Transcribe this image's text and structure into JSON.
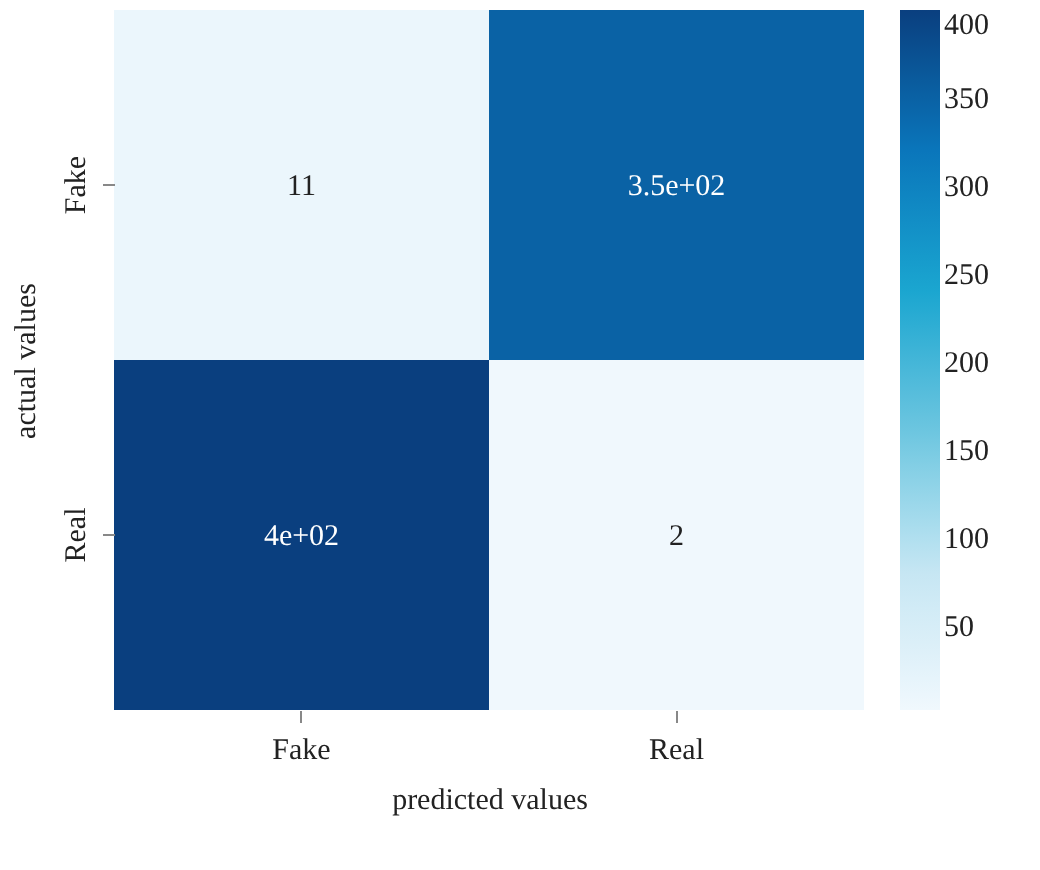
{
  "chart_data": {
    "type": "heatmap",
    "xlabel": "predicted values",
    "ylabel": "actual values",
    "categories": [
      "Fake",
      "Real"
    ],
    "y_categories": [
      "Fake",
      "Real"
    ],
    "cells": [
      [
        11,
        350
      ],
      [
        400,
        2
      ]
    ],
    "cell_labels": [
      [
        "11",
        "3.5e+02"
      ],
      [
        "4e+02",
        "2"
      ]
    ],
    "clim": [
      2,
      400
    ],
    "cticks": [
      50,
      100,
      150,
      200,
      250,
      300,
      350,
      400
    ],
    "grid": false
  }
}
